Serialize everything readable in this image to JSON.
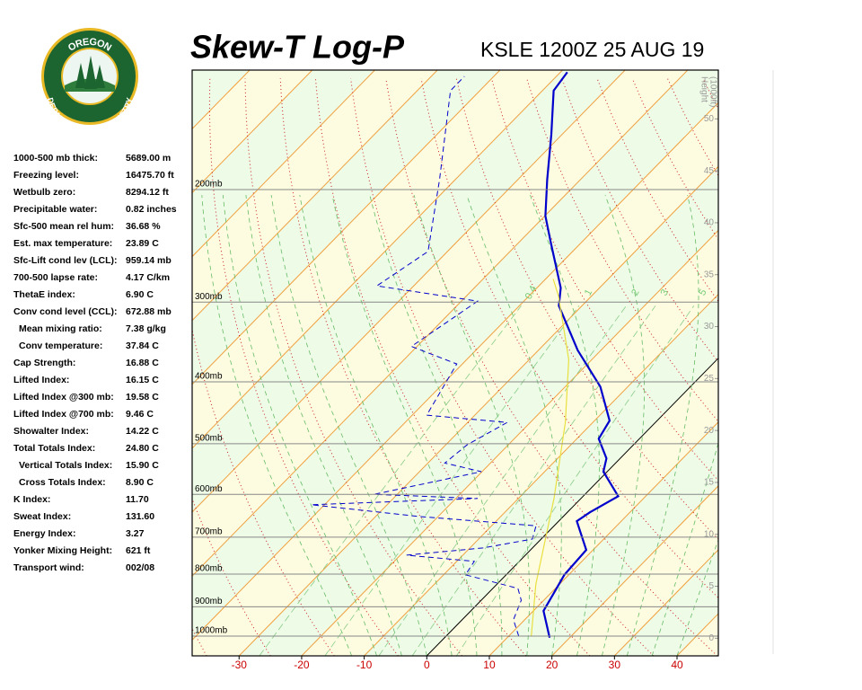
{
  "logo": {
    "top": "OREGON",
    "bottom": "DEPARTMENT OF FORESTRY"
  },
  "indices": [
    [
      "1000-500 mb thick:",
      "5689.00 m"
    ],
    [
      "Freezing level:",
      "16475.70 ft"
    ],
    [
      "Wetbulb zero:",
      "8294.12 ft"
    ],
    [
      "Precipitable water:",
      "0.82 inches"
    ],
    [
      "Sfc-500 mean rel hum:",
      "36.68 %"
    ],
    [
      "Est. max temperature:",
      "23.89 C"
    ],
    [
      "Sfc-Lift cond lev (LCL):",
      "959.14 mb"
    ],
    [
      "700-500 lapse rate:",
      "4.17 C/km"
    ],
    [
      "ThetaE index:",
      "6.90 C"
    ],
    [
      "Conv cond level (CCL):",
      "672.88 mb"
    ],
    [
      "Mean mixing ratio:",
      "7.38 g/kg"
    ],
    [
      "Conv temperature:",
      "37.84 C"
    ],
    [
      "Cap Strength:",
      "16.88 C"
    ],
    [
      "Lifted Index:",
      "16.15 C"
    ],
    [
      "Lifted Index @300 mb:",
      "19.58 C"
    ],
    [
      "Lifted Index @700 mb:",
      "9.46 C"
    ],
    [
      "Showalter Index:",
      "14.22 C"
    ],
    [
      "Total Totals Index:",
      "24.80 C"
    ],
    [
      "Vertical Totals Index:",
      "15.90 C"
    ],
    [
      "Cross Totals Index:",
      "8.90 C"
    ],
    [
      "K Index:",
      "11.70"
    ],
    [
      "Sweat Index:",
      "131.60"
    ],
    [
      "Energy Index:",
      "3.27"
    ],
    [
      "Yonker Mixing Height:",
      "621 ft"
    ],
    [
      "Transport wind:",
      "002/08"
    ]
  ],
  "chart_data": {
    "type": "skewt",
    "title": "Skew-T Log-P",
    "subtitle": "KSLE 1200Z 25 AUG 19",
    "xlim": [
      -37.5,
      46.6
    ],
    "xticks": [
      -30,
      -20,
      -10,
      0,
      10,
      20,
      30,
      40
    ],
    "ylim": [
      1074,
      130
    ],
    "y_scale": "log",
    "yticks": [
      {
        "value": 1000,
        "label": "1000mb"
      },
      {
        "value": 900,
        "label": "900mb"
      },
      {
        "value": 800,
        "label": "800mb"
      },
      {
        "value": 700,
        "label": "700mb"
      },
      {
        "value": 600,
        "label": "600mb"
      },
      {
        "value": 500,
        "label": "500mb"
      },
      {
        "value": 400,
        "label": "400mb"
      },
      {
        "value": 300,
        "label": "300mb"
      },
      {
        "value": 200,
        "label": "200mb"
      }
    ],
    "height_title": [
      "Height",
      "(1000ft)"
    ],
    "height_lim": [
      -1.7,
      54.7
    ],
    "height_ticks": [
      0,
      5,
      10,
      15,
      20,
      25,
      30,
      35,
      40,
      45,
      50
    ],
    "mixing_ratio_labels": [
      0.4,
      1,
      2,
      3,
      5
    ],
    "series": [
      {
        "color": "#0000cc",
        "style": "solid",
        "pressure": [
          1006,
          913,
          862,
          802,
          733,
          661,
          640,
          604,
          553,
          527,
          491,
          460,
          407,
          357,
          304,
          285,
          242,
          220,
          193,
          164,
          140,
          131
        ],
        "values": [
          16.8,
          11.6,
          10.6,
          9.3,
          8.9,
          2.9,
          3.6,
          5.6,
          -0.6,
          -2.2,
          -6.5,
          -7.6,
          -14.4,
          -23.7,
          -33.7,
          -36.2,
          -44.9,
          -49.9,
          -55.3,
          -61.7,
          -68.2,
          -68.9
        ]
      },
      {
        "color": "#0000cc",
        "style": "dashed",
        "pressure": [
          1000,
          943,
          879,
          842,
          802,
          764,
          747,
          728,
          705,
          672,
          650,
          623,
          609,
          600,
          553,
          536,
          502,
          463,
          451,
          375,
          352,
          299,
          283,
          250,
          193,
          140,
          133
        ],
        "values": [
          11.6,
          8.2,
          6.4,
          4.0,
          -6.5,
          -7.2,
          -19.0,
          -7.9,
          -1.4,
          -2.9,
          -23.0,
          -42.1,
          -16.5,
          -33.7,
          -20.1,
          -27.3,
          -26.6,
          -23.7,
          -37.7,
          -40.9,
          -50.9,
          -47.4,
          -65.9,
          -63.1,
          -72.5,
          -84.7,
          -84.7
        ]
      },
      {
        "color": "#e8e040",
        "style": "solid",
        "pressure": [
          1000,
          829,
          609,
          463,
          369,
          294,
          276
        ],
        "values": [
          13.6,
          6.2,
          -4.3,
          -14.4,
          -23.7,
          -35.2,
          -38.8
        ]
      }
    ]
  }
}
